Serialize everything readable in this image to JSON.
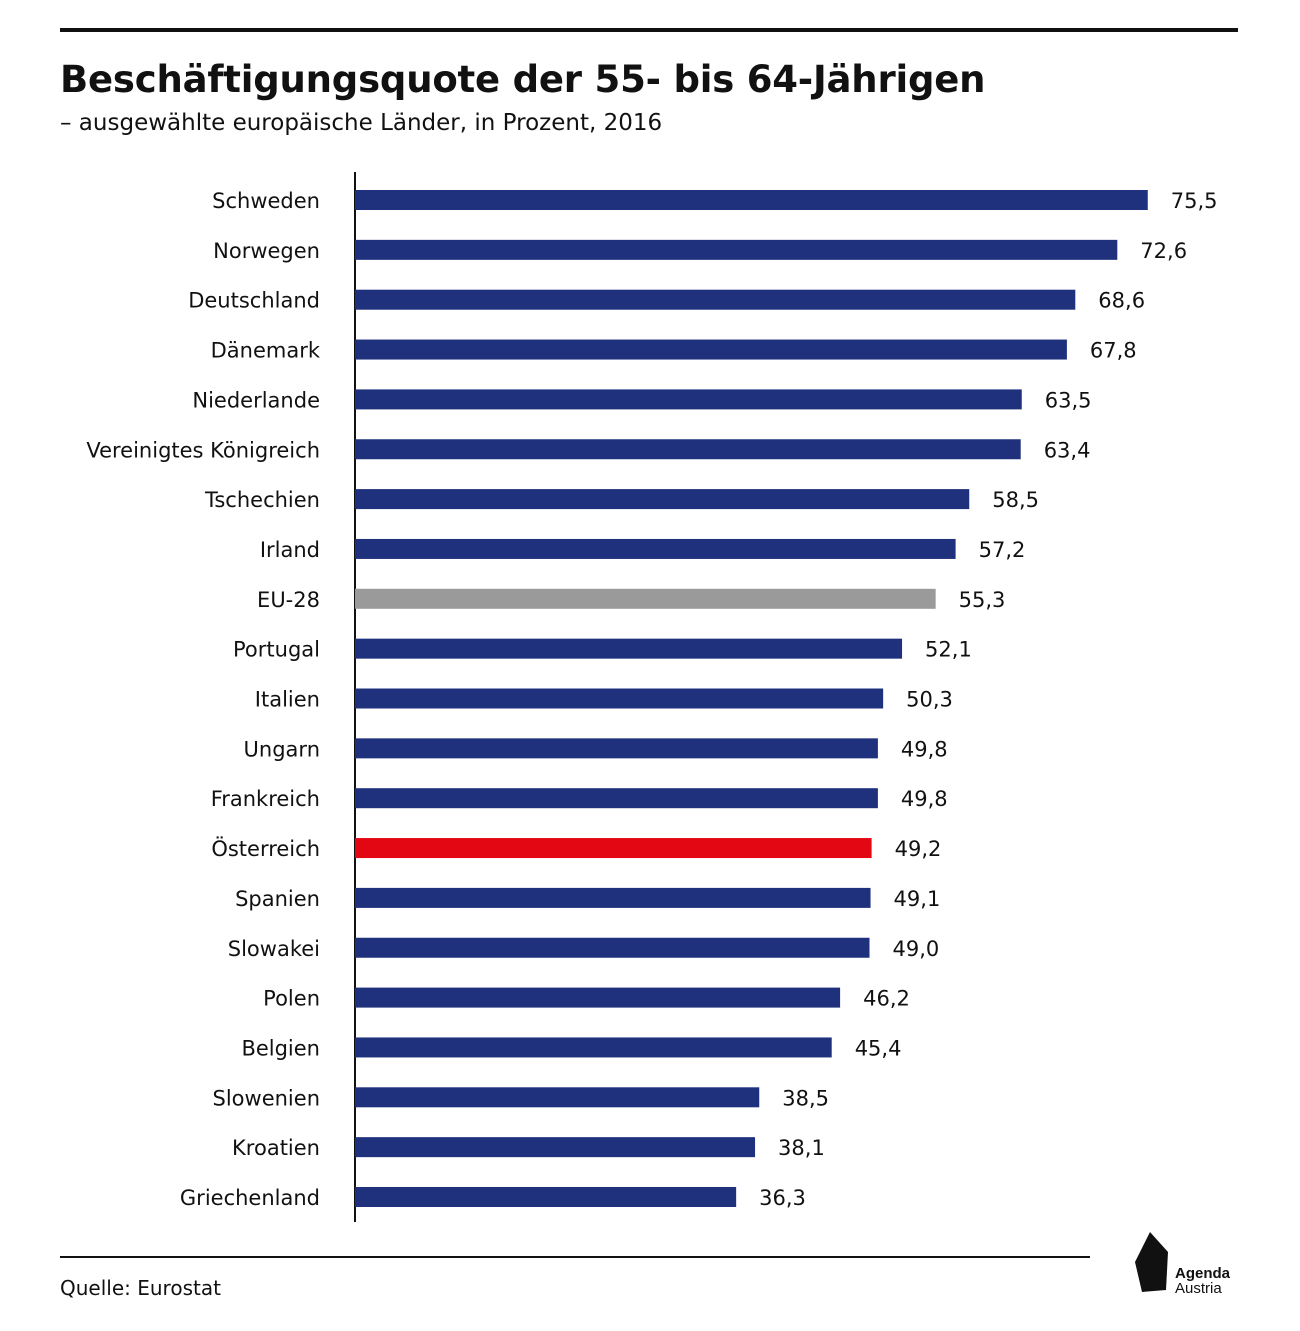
{
  "header": {
    "title": "Beschäftigungsquote der 55- bis 64-Jährigen",
    "subtitle": "– ausgewählte europäische Länder, in Prozent, 2016"
  },
  "footer": {
    "source": "Quelle: Eurostat",
    "logo_line1": "Agenda",
    "logo_line2": "Austria"
  },
  "colors": {
    "default_bar": "#1f317c",
    "eu_bar": "#9a9a9a",
    "highlight_bar": "#e30613"
  },
  "chart_data": {
    "type": "bar",
    "orientation": "horizontal",
    "title": "Beschäftigungsquote der 55- bis 64-Jährigen",
    "subtitle": "– ausgewählte europäische Länder, in Prozent, 2016",
    "xlim": [
      0,
      80
    ],
    "grid": false,
    "categories": [
      "Schweden",
      "Norwegen",
      "Deutschland",
      "Dänemark",
      "Niederlande",
      "Vereinigtes Königreich",
      "Tschechien",
      "Irland",
      "EU-28",
      "Portugal",
      "Italien",
      "Ungarn",
      "Frankreich",
      "Österreich",
      "Spanien",
      "Slowakei",
      "Polen",
      "Belgien",
      "Slowenien",
      "Kroatien",
      "Griechenland"
    ],
    "values": [
      75.5,
      72.6,
      68.6,
      67.8,
      63.5,
      63.4,
      58.5,
      57.2,
      55.3,
      52.1,
      50.3,
      49.8,
      49.8,
      49.2,
      49.1,
      49.0,
      46.2,
      45.4,
      38.5,
      38.1,
      36.3
    ],
    "value_labels": [
      "75,5",
      "72,6",
      "68,6",
      "67,8",
      "63,5",
      "63,4",
      "58,5",
      "57,2",
      "55,3",
      "52,1",
      "50,3",
      "49,8",
      "49,8",
      "49,2",
      "49,1",
      "49,0",
      "46,2",
      "45,4",
      "38,5",
      "38,1",
      "36,3"
    ],
    "highlight": {
      "EU-28": "#9a9a9a",
      "Österreich": "#e30613"
    }
  }
}
